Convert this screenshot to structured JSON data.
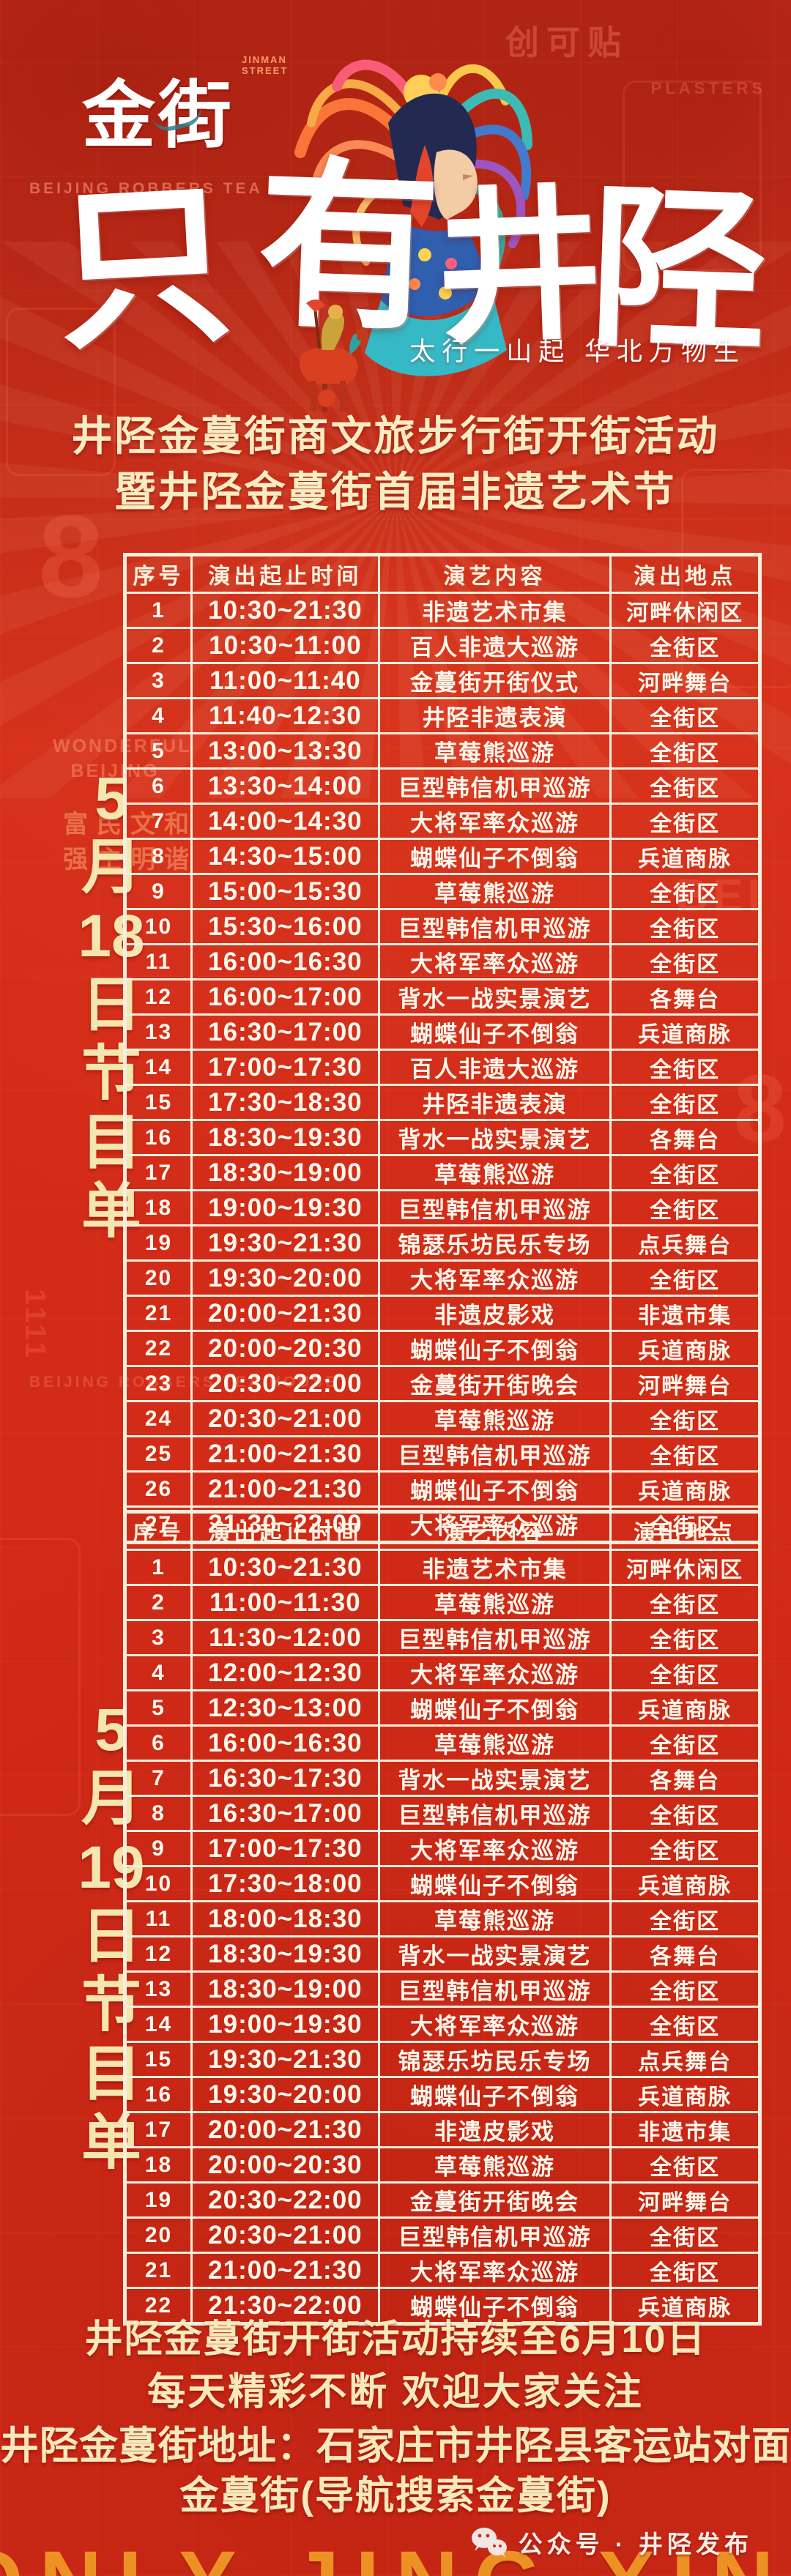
{
  "colors": {
    "background_red": "#d22b18",
    "deep_red": "#a81408",
    "title_cream": "#f8ecc2",
    "table_line": "#f7efdd",
    "table_text": "#fdf8ec",
    "side_label_yellow": "#f5e5ae",
    "footer_yellow": "#f6e9bb",
    "calligraphy_white": "#ffffff",
    "orange_accent": "#f5a028"
  },
  "branding": {
    "logo_text": "金街",
    "logo_sub": "JINMAN STREET",
    "logo_caption": "BEIJING ROBBERS TEA HOUSE",
    "calligraphy_chars": [
      "只",
      "有",
      "井",
      "陉"
    ],
    "calligraphy_full": "只有井陉",
    "tagline": "太行一山起  华北万物生",
    "illustration_alt": "opera-figure-with-phoenix-headdress",
    "horse_alt": "folk-art-horse-rider"
  },
  "titles": {
    "line1": "井陉金蔓街商文旅步行街开街活动",
    "line2": "暨井陉金蔓街首届非遗艺术节"
  },
  "schedule_day1": {
    "side_label": "5月18日节目单",
    "side_label_lines": [
      "5",
      "月",
      "18",
      "日",
      "节",
      "目",
      "单"
    ],
    "columns": [
      "序号",
      "演出起止时间",
      "演艺内容",
      "演出地点"
    ],
    "rows": [
      [
        "1",
        "10:30~21:30",
        "非遗艺术市集",
        "河畔休闲区"
      ],
      [
        "2",
        "10:30~11:00",
        "百人非遗大巡游",
        "全街区"
      ],
      [
        "3",
        "11:00~11:40",
        "金蔓街开街仪式",
        "河畔舞台"
      ],
      [
        "4",
        "11:40~12:30",
        "井陉非遗表演",
        "全街区"
      ],
      [
        "5",
        "13:00~13:30",
        "草莓熊巡游",
        "全街区"
      ],
      [
        "6",
        "13:30~14:00",
        "巨型韩信机甲巡游",
        "全街区"
      ],
      [
        "7",
        "14:00~14:30",
        "大将军率众巡游",
        "全街区"
      ],
      [
        "8",
        "14:30~15:00",
        "蝴蝶仙子不倒翁",
        "兵道商脉"
      ],
      [
        "9",
        "15:00~15:30",
        "草莓熊巡游",
        "全街区"
      ],
      [
        "10",
        "15:30~16:00",
        "巨型韩信机甲巡游",
        "全街区"
      ],
      [
        "11",
        "16:00~16:30",
        "大将军率众巡游",
        "全街区"
      ],
      [
        "12",
        "16:00~17:00",
        "背水一战实景演艺",
        "各舞台"
      ],
      [
        "13",
        "16:30~17:00",
        "蝴蝶仙子不倒翁",
        "兵道商脉"
      ],
      [
        "14",
        "17:00~17:30",
        "百人非遗大巡游",
        "全街区"
      ],
      [
        "15",
        "17:30~18:30",
        "井陉非遗表演",
        "全街区"
      ],
      [
        "16",
        "18:30~19:30",
        "背水一战实景演艺",
        "各舞台"
      ],
      [
        "17",
        "18:30~19:00",
        "草莓熊巡游",
        "全街区"
      ],
      [
        "18",
        "19:00~19:30",
        "巨型韩信机甲巡游",
        "全街区"
      ],
      [
        "19",
        "19:30~21:30",
        "锦瑟乐坊民乐专场",
        "点兵舞台"
      ],
      [
        "20",
        "19:30~20:00",
        "大将军率众巡游",
        "全街区"
      ],
      [
        "21",
        "20:00~21:30",
        "非遗皮影戏",
        "非遗市集"
      ],
      [
        "22",
        "20:00~20:30",
        "蝴蝶仙子不倒翁",
        "兵道商脉"
      ],
      [
        "23",
        "20:30~22:00",
        "金蔓街开街晚会",
        "河畔舞台"
      ],
      [
        "24",
        "20:30~21:00",
        "草莓熊巡游",
        "全街区"
      ],
      [
        "25",
        "21:00~21:30",
        "巨型韩信机甲巡游",
        "全街区"
      ],
      [
        "26",
        "21:00~21:30",
        "蝴蝶仙子不倒翁",
        "兵道商脉"
      ],
      [
        "27",
        "21:30~22:00",
        "大将军率众巡游",
        "全街区"
      ]
    ]
  },
  "schedule_day2": {
    "side_label": "5月19日节目单",
    "side_label_lines": [
      "5",
      "月",
      "19",
      "日",
      "节",
      "目",
      "单"
    ],
    "columns": [
      "序号",
      "演出起止时间",
      "演艺内容",
      "演出地点"
    ],
    "rows": [
      [
        "1",
        "10:30~21:30",
        "非遗艺术市集",
        "河畔休闲区"
      ],
      [
        "2",
        "11:00~11:30",
        "草莓熊巡游",
        "全街区"
      ],
      [
        "3",
        "11:30~12:00",
        "巨型韩信机甲巡游",
        "全街区"
      ],
      [
        "4",
        "12:00~12:30",
        "大将军率众巡游",
        "全街区"
      ],
      [
        "5",
        "12:30~13:00",
        "蝴蝶仙子不倒翁",
        "兵道商脉"
      ],
      [
        "6",
        "16:00~16:30",
        "草莓熊巡游",
        "全街区"
      ],
      [
        "7",
        "16:30~17:30",
        "背水一战实景演艺",
        "各舞台"
      ],
      [
        "8",
        "16:30~17:00",
        "巨型韩信机甲巡游",
        "全街区"
      ],
      [
        "9",
        "17:00~17:30",
        "大将军率众巡游",
        "全街区"
      ],
      [
        "10",
        "17:30~18:00",
        "蝴蝶仙子不倒翁",
        "兵道商脉"
      ],
      [
        "11",
        "18:00~18:30",
        "草莓熊巡游",
        "全街区"
      ],
      [
        "12",
        "18:30~19:30",
        "背水一战实景演艺",
        "各舞台"
      ],
      [
        "13",
        "18:30~19:00",
        "巨型韩信机甲巡游",
        "全街区"
      ],
      [
        "14",
        "19:00~19:30",
        "大将军率众巡游",
        "全街区"
      ],
      [
        "15",
        "19:30~21:30",
        "锦瑟乐坊民乐专场",
        "点兵舞台"
      ],
      [
        "16",
        "19:30~20:00",
        "蝴蝶仙子不倒翁",
        "兵道商脉"
      ],
      [
        "17",
        "20:00~21:30",
        "非遗皮影戏",
        "非遗市集"
      ],
      [
        "18",
        "20:00~20:30",
        "草莓熊巡游",
        "全街区"
      ],
      [
        "19",
        "20:30~22:00",
        "金蔓街开街晚会",
        "河畔舞台"
      ],
      [
        "20",
        "20:30~21:00",
        "巨型韩信机甲巡游",
        "全街区"
      ],
      [
        "21",
        "21:00~21:30",
        "大将军率众巡游",
        "全街区"
      ],
      [
        "22",
        "21:30~22:00",
        "蝴蝶仙子不倒翁",
        "兵道商脉"
      ]
    ]
  },
  "footer": {
    "notice_line1": "井陉金蔓街开街活动持续至6月10日",
    "notice_line2": "每天精彩不断 欢迎大家关注",
    "address_line1": "井陉金蔓街地址：石家庄市井陉县客运站对面",
    "address_line2": "金蔓街(导航搜索金蔓街)",
    "wechat_label": "公众号 · 井陉发布",
    "background_word": "ONLY JING XING"
  },
  "background": {
    "motifs": [
      "创可贴",
      "PLASTERS",
      "WONDERFUL BEIJING",
      "富民文和",
      "强主明谐",
      "8",
      "8",
      "BEI",
      "1111",
      "BEIJING ROBBERS TEA HOUSE"
    ]
  }
}
